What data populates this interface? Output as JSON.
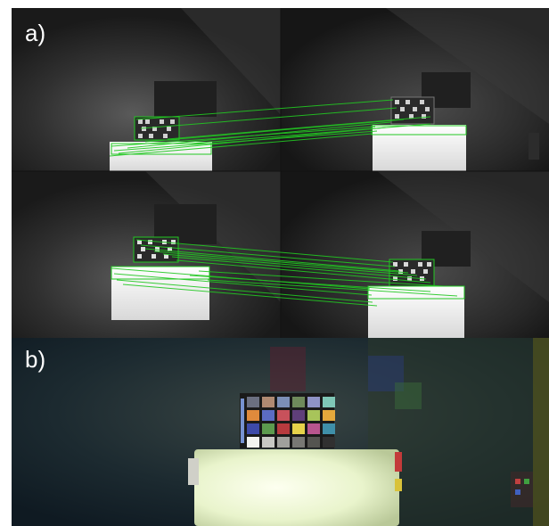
{
  "figure": {
    "panel_a_label": "a)",
    "panel_b_label": "b)"
  },
  "colors": {
    "match_line": "#22c822",
    "background_dark": "#1c1c1c",
    "panel_b_bg": "#17252b"
  },
  "chart_colors": [
    [
      "#6b6f80",
      "#b08a72",
      "#7c8fb6",
      "#6f8a5b",
      "#8f93c6",
      "#7fc6b6"
    ],
    [
      "#e08a3c",
      "#5b6cc4",
      "#c8515b",
      "#5f3f7a",
      "#a8c45a",
      "#e4a83c"
    ],
    [
      "#3e4aa8",
      "#5c9a4e",
      "#b73a3e",
      "#e6d24a",
      "#b8558e",
      "#3f8fa8"
    ],
    [
      "#f4f4f0",
      "#c8c8c4",
      "#a0a09c",
      "#787874",
      "#545450",
      "#303030"
    ]
  ]
}
